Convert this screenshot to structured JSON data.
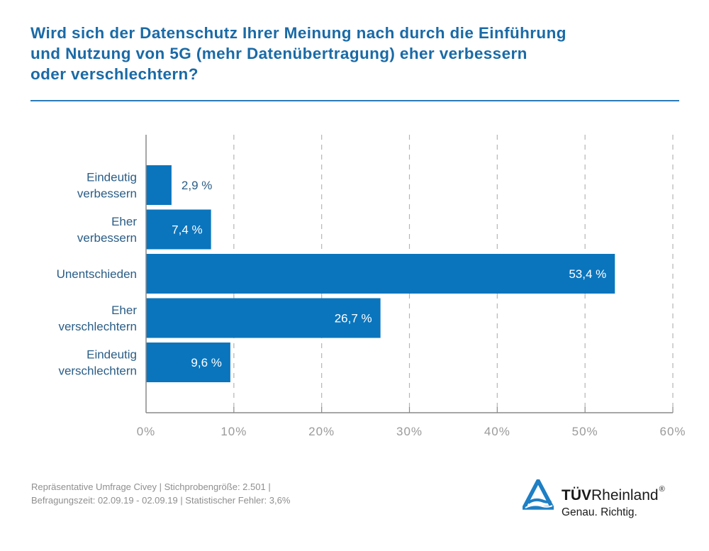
{
  "chart_data": {
    "type": "bar",
    "orientation": "horizontal",
    "title": "Wird sich der Datenschutz Ihrer Meinung nach durch die Einführung und Nutzung von 5G (mehr Datenübertragung) eher verbessern oder verschlechtern?",
    "title_lines": [
      "Wird sich der Datenschutz Ihrer Meinung nach durch die Einführung",
      "und Nutzung von 5G (mehr Datenübertragung) eher verbessern",
      "oder verschlechtern?"
    ],
    "categories": [
      [
        "Eindeutig",
        "verbessern"
      ],
      [
        "Eher",
        "verbessern"
      ],
      [
        "Unentschieden"
      ],
      [
        "Eher",
        "verschlechtern"
      ],
      [
        "Eindeutig",
        "verschlechtern"
      ]
    ],
    "values": [
      2.9,
      7.4,
      53.4,
      26.7,
      9.6
    ],
    "value_labels": [
      "2,9 %",
      "7,4 %",
      "53,4 %",
      "26,7 %",
      "9,6 %"
    ],
    "xlabel": "",
    "ylabel": "",
    "xlim": [
      0,
      60
    ],
    "xticks": [
      0,
      10,
      20,
      30,
      40,
      50,
      60
    ],
    "xtick_labels": [
      "0%",
      "10%",
      "20%",
      "30%",
      "40%",
      "50%",
      "60%"
    ],
    "grid": "vertical dashed",
    "legend": "none",
    "bar_color": "#0a75bd"
  },
  "footer": {
    "line1": "Repräsentative Umfrage Civey | Stichprobengröße: 2.501 |",
    "line2": "Befragungszeit: 02.09.19 - 02.09.19 | Statistischer Fehler: 3,6%"
  },
  "logo": {
    "brand_bold": "TÜV",
    "brand_regular": "Rheinland",
    "registered": "®",
    "claim": "Genau. Richtig.",
    "icon": "tuv-triangle-logo-icon"
  },
  "colors": {
    "title": "#1a6aa6",
    "accent": "#0a75bd",
    "grid": "#b5b5b5",
    "axis": "#8a8a8a"
  }
}
